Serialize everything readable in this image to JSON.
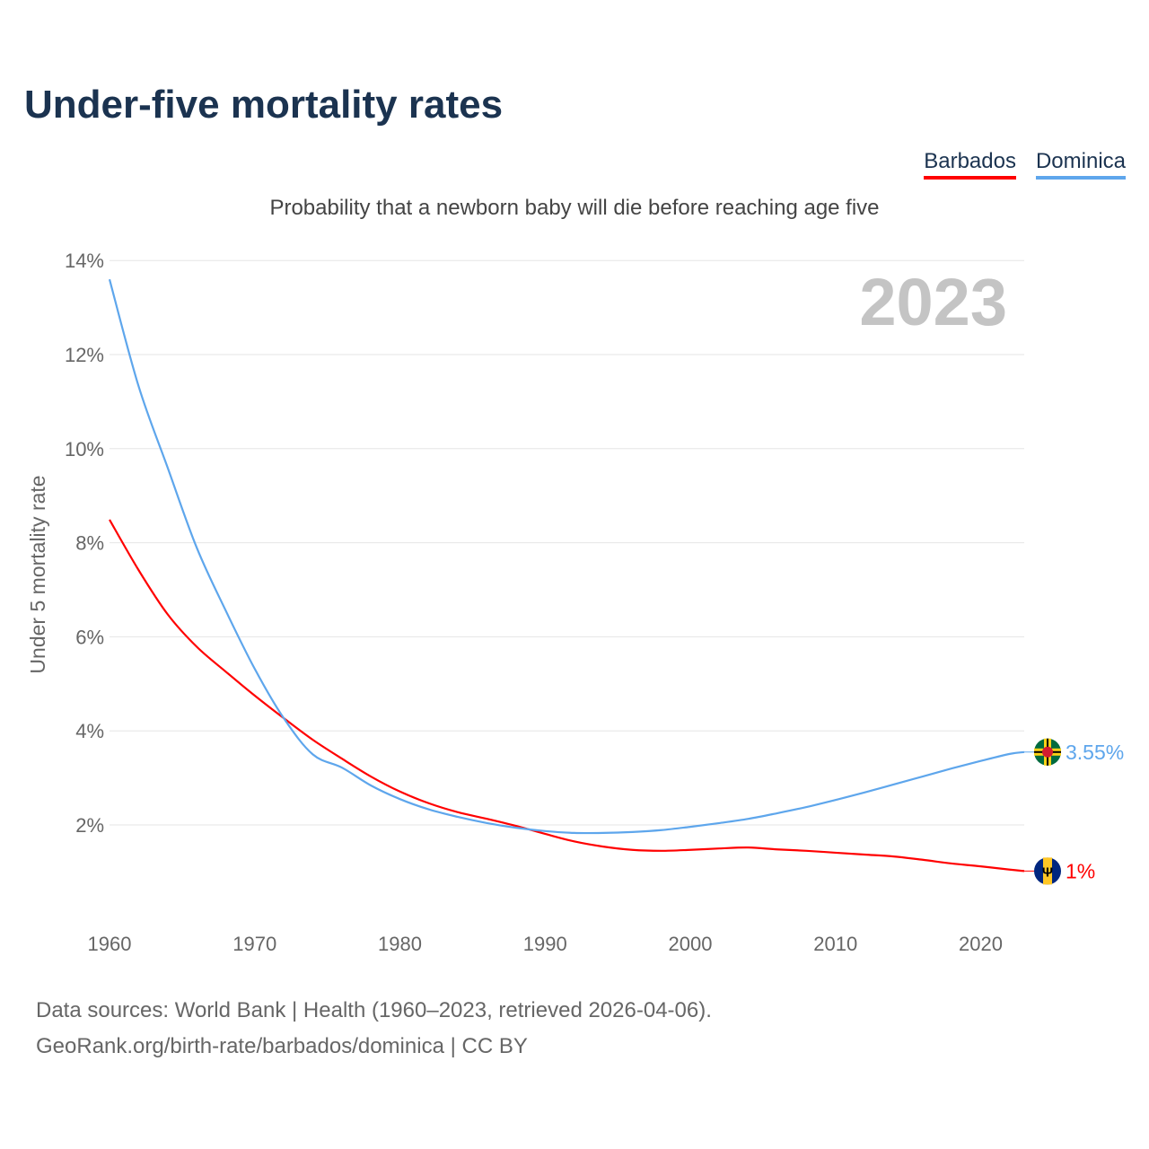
{
  "title": "Under-five mortality rates",
  "subtitle": "Probability that a newborn baby will die before reaching age five",
  "year_label": "2023",
  "footer": {
    "line1": "Data sources: World Bank | Health (1960–2023, retrieved 2026-04-06).",
    "line2": "GeoRank.org/birth-rate/barbados/dominica | CC BY"
  },
  "chart_data": {
    "type": "line",
    "title": "Under-five mortality rates",
    "ylabel": "Under 5 mortality rate",
    "xlabel": "",
    "xlim": [
      1960,
      2023
    ],
    "ylim": [
      0,
      14
    ],
    "x_ticks": [
      1960,
      1970,
      1980,
      1990,
      2000,
      2010,
      2020
    ],
    "y_ticks": [
      2,
      4,
      6,
      8,
      10,
      12,
      14
    ],
    "y_tick_labels": [
      "2%",
      "4%",
      "6%",
      "8%",
      "10%",
      "12%",
      "14%"
    ],
    "grid": true,
    "legend": "top-right",
    "x": [
      1960,
      1962,
      1964,
      1966,
      1968,
      1970,
      1972,
      1974,
      1976,
      1978,
      1980,
      1982,
      1984,
      1986,
      1988,
      1990,
      1992,
      1994,
      1996,
      1998,
      2000,
      2002,
      2004,
      2006,
      2008,
      2010,
      2012,
      2014,
      2016,
      2018,
      2020,
      2022,
      2023
    ],
    "series": [
      {
        "name": "Barbados",
        "color": "#ff0000",
        "end_label": "1%",
        "values": [
          8.49,
          7.42,
          6.48,
          5.79,
          5.26,
          4.75,
          4.27,
          3.81,
          3.41,
          3.03,
          2.71,
          2.46,
          2.27,
          2.13,
          1.98,
          1.81,
          1.65,
          1.54,
          1.47,
          1.45,
          1.47,
          1.5,
          1.52,
          1.48,
          1.45,
          1.41,
          1.37,
          1.33,
          1.26,
          1.18,
          1.12,
          1.05,
          1.02
        ]
      },
      {
        "name": "Dominica",
        "color": "#5ea6ec",
        "end_label": "3.55%",
        "values": [
          13.6,
          11.33,
          9.6,
          7.9,
          6.56,
          5.32,
          4.27,
          3.5,
          3.22,
          2.84,
          2.55,
          2.33,
          2.17,
          2.04,
          1.94,
          1.87,
          1.83,
          1.83,
          1.85,
          1.89,
          1.96,
          2.04,
          2.13,
          2.25,
          2.38,
          2.53,
          2.69,
          2.86,
          3.03,
          3.2,
          3.36,
          3.51,
          3.55
        ]
      }
    ]
  }
}
